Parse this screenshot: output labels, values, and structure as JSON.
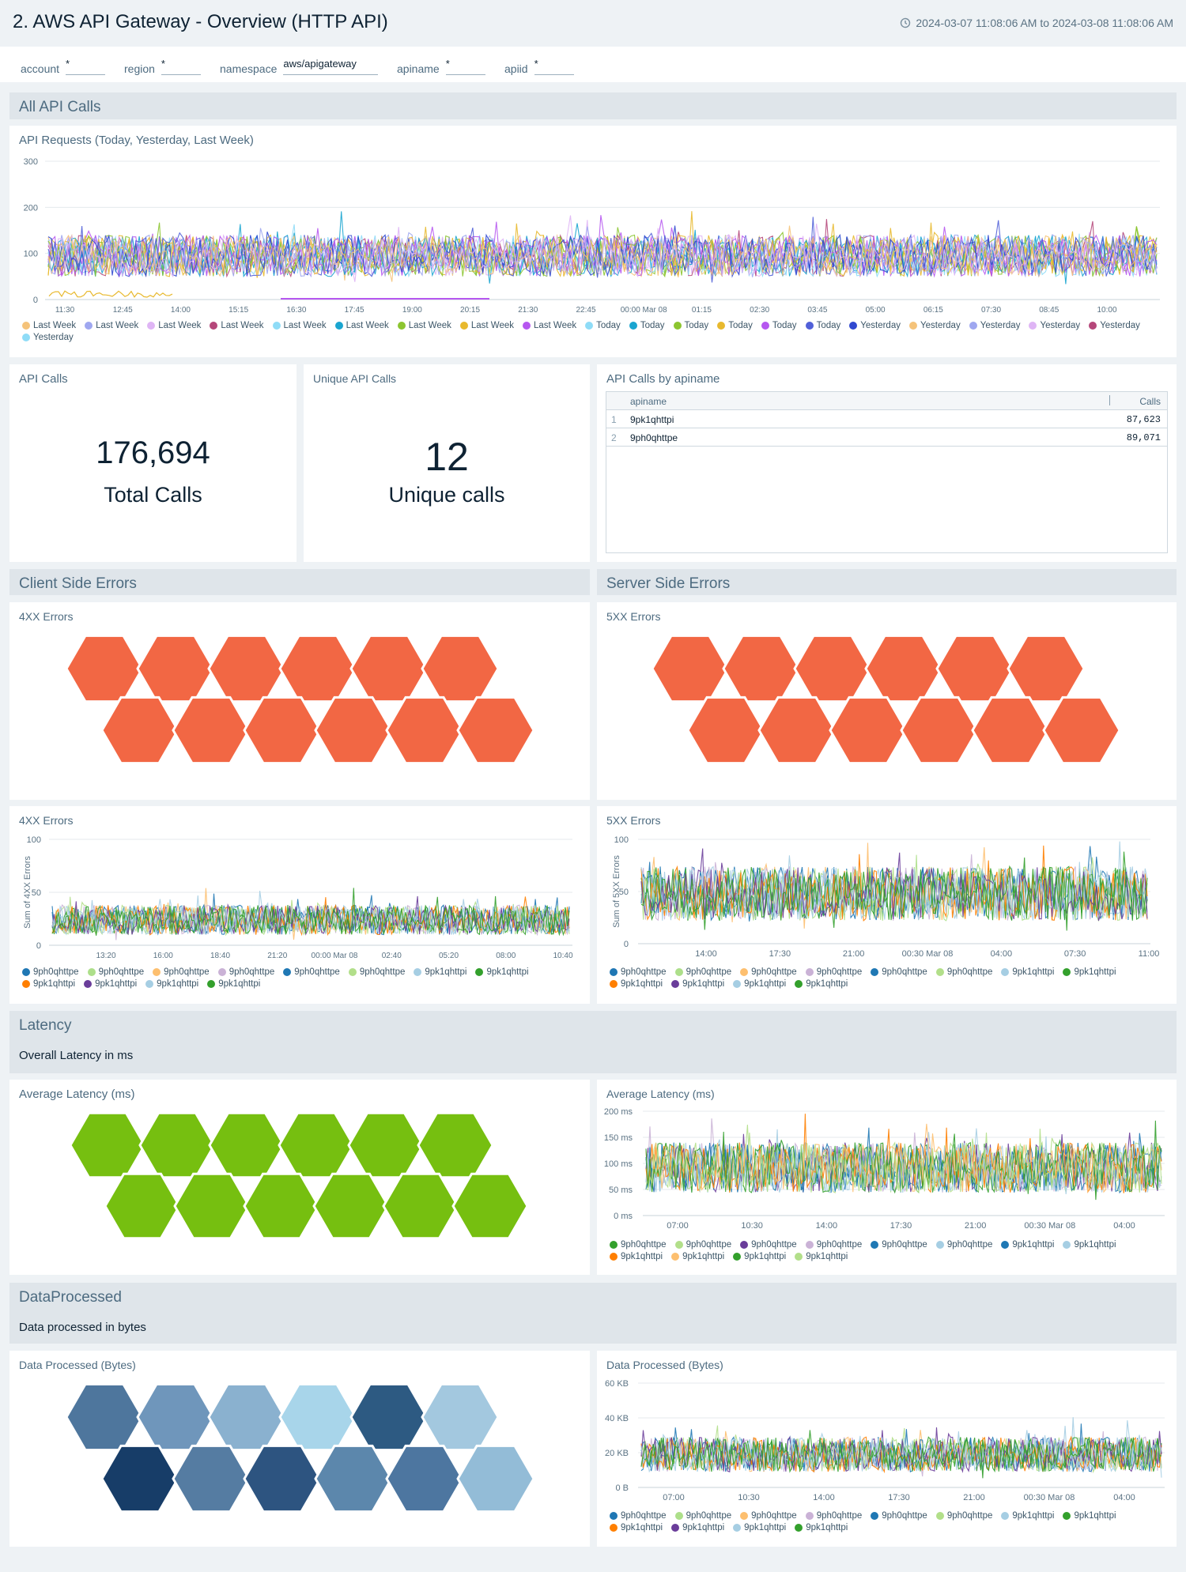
{
  "dashboard": {
    "title": "2. AWS API Gateway - Overview (HTTP API)",
    "time_range": "2024-03-07 11:08:06 AM to 2024-03-08 11:08:06 AM",
    "clock_icon": "clock-icon"
  },
  "filters": [
    {
      "label": "account",
      "value": "*"
    },
    {
      "label": "region",
      "value": "*"
    },
    {
      "label": "namespace",
      "value": "aws/apigateway"
    },
    {
      "label": "apiname",
      "value": "*"
    },
    {
      "label": "apiid",
      "value": "*"
    }
  ],
  "sections": {
    "all_api_calls": {
      "title": "All API Calls"
    },
    "client_errors": {
      "title": "Client Side Errors"
    },
    "server_errors": {
      "title": "Server Side Errors"
    },
    "latency": {
      "title": "Latency",
      "description": "Overall Latency in ms"
    },
    "data_processed": {
      "title": "DataProcessed",
      "description": "Data processed in bytes"
    }
  },
  "panels": {
    "api_requests": {
      "title": "API Requests (Today, Yesterday, Last Week)",
      "legend": [
        {
          "name": "Last Week",
          "color": "#f5c37a"
        },
        {
          "name": "Last Week",
          "color": "#9fa7f0"
        },
        {
          "name": "Last Week",
          "color": "#dfb5f5"
        },
        {
          "name": "Last Week",
          "color": "#b5477a"
        },
        {
          "name": "Last Week",
          "color": "#8fdcf7"
        },
        {
          "name": "Last Week",
          "color": "#1aa5d0"
        },
        {
          "name": "Last Week",
          "color": "#8cc530"
        },
        {
          "name": "Last Week",
          "color": "#e8b92e"
        },
        {
          "name": "Last Week",
          "color": "#b657f0"
        },
        {
          "name": "Today",
          "color": "#8fdcf7"
        },
        {
          "name": "Today",
          "color": "#1aa5d0"
        },
        {
          "name": "Today",
          "color": "#8cc530"
        },
        {
          "name": "Today",
          "color": "#e8b92e"
        },
        {
          "name": "Today",
          "color": "#b657f0"
        },
        {
          "name": "Today",
          "color": "#5160d8"
        },
        {
          "name": "Yesterday",
          "color": "#3048d0"
        },
        {
          "name": "Yesterday",
          "color": "#f5c37a"
        },
        {
          "name": "Yesterday",
          "color": "#9fa7f0"
        },
        {
          "name": "Yesterday",
          "color": "#dfb5f5"
        },
        {
          "name": "Yesterday",
          "color": "#b5477a"
        },
        {
          "name": "Yesterday",
          "color": "#8fdcf7"
        }
      ]
    },
    "api_calls": {
      "title": "API Calls",
      "value": "176,694",
      "unit": "Total Calls"
    },
    "unique_api_calls": {
      "title": "Unique API Calls",
      "value": "12",
      "unit": "Unique calls"
    },
    "api_calls_by_apiname": {
      "title": "API Calls by apiname",
      "columns": [
        "apiname",
        "Calls"
      ],
      "rows": [
        {
          "idx": "1",
          "apiname": "9pk1qhttpi",
          "calls": "87,623"
        },
        {
          "idx": "2",
          "apiname": "9ph0qhttpe",
          "calls": "89,071"
        }
      ]
    },
    "errors_4xx_honeycomb": {
      "title": "4XX Errors",
      "color": "#f26744"
    },
    "errors_5xx_honeycomb": {
      "title": "5XX Errors",
      "color": "#f26744"
    },
    "errors_4xx_chart": {
      "title": "4XX Errors"
    },
    "errors_5xx_chart": {
      "title": "5XX Errors"
    },
    "latency_honeycomb": {
      "title": "Average Latency (ms)",
      "color": "#76bf10"
    },
    "latency_chart": {
      "title": "Average Latency (ms)"
    },
    "data_honeycomb": {
      "title": "Data Processed (Bytes)",
      "colors": [
        "#4e769d",
        "#6f96bb",
        "#8ab1cf",
        "#a8d5ea",
        "#2d5a82",
        "#a3c8df",
        "#173d68",
        "#557ca2",
        "#2d5480",
        "#5c87ac",
        "#4d76a0",
        "#93bcd7"
      ]
    },
    "data_chart": {
      "title": "Data Processed (Bytes)"
    }
  },
  "error_legend": [
    {
      "name": "9ph0qhttpe",
      "color": "#1f77b4"
    },
    {
      "name": "9ph0qhttpe",
      "color": "#addf8a"
    },
    {
      "name": "9ph0qhttpe",
      "color": "#fdbf6f"
    },
    {
      "name": "9ph0qhttpe",
      "color": "#cab2d6"
    },
    {
      "name": "9ph0qhttpe",
      "color": "#1f78b4"
    },
    {
      "name": "9ph0qhttpe",
      "color": "#b2df8a"
    },
    {
      "name": "9pk1qhttpi",
      "color": "#a6cee3"
    },
    {
      "name": "9pk1qhttpi",
      "color": "#33a02c"
    },
    {
      "name": "9pk1qhttpi",
      "color": "#ff7f00"
    },
    {
      "name": "9pk1qhttpi",
      "color": "#6a3d9a"
    },
    {
      "name": "9pk1qhttpi",
      "color": "#a6cee3"
    },
    {
      "name": "9pk1qhttpi",
      "color": "#33a02c"
    }
  ],
  "latency_legend": [
    {
      "name": "9ph0qhttpe",
      "color": "#33a02c"
    },
    {
      "name": "9ph0qhttpe",
      "color": "#b2df8a"
    },
    {
      "name": "9ph0qhttpe",
      "color": "#6a3d9a"
    },
    {
      "name": "9ph0qhttpe",
      "color": "#cab2d6"
    },
    {
      "name": "9ph0qhttpe",
      "color": "#1f78b4"
    },
    {
      "name": "9ph0qhttpe",
      "color": "#a6cee3"
    },
    {
      "name": "9pk1qhttpi",
      "color": "#1f78b4"
    },
    {
      "name": "9pk1qhttpi",
      "color": "#a6cee3"
    },
    {
      "name": "9pk1qhttpi",
      "color": "#ff7f00"
    },
    {
      "name": "9pk1qhttpi",
      "color": "#fdbf6f"
    },
    {
      "name": "9pk1qhttpi",
      "color": "#33a02c"
    },
    {
      "name": "9pk1qhttpi",
      "color": "#b2df8a"
    }
  ],
  "chart_data": [
    {
      "type": "line",
      "title": "API Requests (Today, Yesterday, Last Week)",
      "x": [
        "11:30",
        "12:45",
        "14:00",
        "15:15",
        "16:30",
        "17:45",
        "19:00",
        "20:15",
        "21:30",
        "22:45",
        "00:00 Mar 08",
        "01:15",
        "02:30",
        "03:45",
        "05:00",
        "06:15",
        "07:30",
        "08:45",
        "10:00"
      ],
      "ylim": [
        0,
        300
      ],
      "yticks": [
        0,
        100,
        200,
        300
      ],
      "series_count": 21
    },
    {
      "type": "line",
      "title": "4XX Errors",
      "ylabel": "Sum of 4XX Errors",
      "x": [
        "13:20",
        "16:00",
        "18:40",
        "21:20",
        "00:00 Mar 08",
        "02:40",
        "05:20",
        "08:00",
        "10:40"
      ],
      "ylim": [
        0,
        100
      ],
      "yticks": [
        0,
        50,
        100
      ],
      "series_count": 12
    },
    {
      "type": "line",
      "title": "5XX Errors",
      "ylabel": "Sum of 5XX Errors",
      "x": [
        "14:00",
        "17:30",
        "21:00",
        "00:30 Mar 08",
        "04:00",
        "07:30",
        "11:00"
      ],
      "ylim": [
        0,
        100
      ],
      "yticks": [
        0,
        50,
        100
      ],
      "series_count": 12
    },
    {
      "type": "line",
      "title": "Average Latency (ms)",
      "x": [
        "07:00",
        "10:30",
        "14:00",
        "17:30",
        "21:00",
        "00:30 Mar 08",
        "04:00"
      ],
      "ylim": [
        0,
        200
      ],
      "yticks": [
        "0 ms",
        "50 ms",
        "100 ms",
        "150 ms",
        "200 ms"
      ],
      "series_count": 12
    },
    {
      "type": "line",
      "title": "Data Processed (Bytes)",
      "x": [
        "07:00",
        "10:30",
        "14:00",
        "17:30",
        "21:00",
        "00:30 Mar 08",
        "04:00"
      ],
      "ylim": [
        0,
        60
      ],
      "yticks": [
        "0 B",
        "20 KB",
        "40 KB",
        "60 KB"
      ],
      "series_count": 12
    }
  ]
}
